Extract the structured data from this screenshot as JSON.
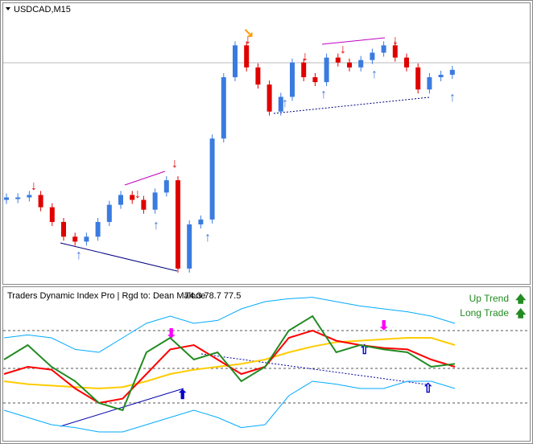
{
  "price_panel": {
    "symbol": "USDCAD,M15",
    "ylim": [
      0,
      100
    ],
    "open": 30,
    "closes": [
      31,
      31,
      32,
      27,
      21,
      15,
      13,
      15,
      21,
      28,
      32,
      30,
      26,
      33,
      38,
      2,
      20,
      22,
      55,
      80,
      93,
      84,
      77,
      66,
      72,
      86,
      80,
      78,
      88,
      86,
      84,
      87,
      90,
      93,
      88,
      84,
      75,
      80,
      81,
      83
    ]
  },
  "indicator_panel": {
    "title": "Traders Dynamic Index Pro | Rgd to: Dean Malone",
    "readout": "74.3 78.7 77.5",
    "signals": [
      "Up Trend",
      "Long Trade"
    ],
    "ylim": [
      0,
      100
    ],
    "series": [
      {
        "color": "#00aaff",
        "values": [
          70,
          72,
          70,
          62,
          60,
          70,
          80,
          85,
          80,
          82,
          90,
          95,
          97,
          98,
          95,
          92,
          90,
          88,
          85,
          80
        ]
      },
      {
        "color": "#00aaff",
        "values": [
          20,
          15,
          10,
          8,
          5,
          5,
          10,
          15,
          20,
          15,
          8,
          10,
          30,
          40,
          38,
          35,
          35,
          40,
          40,
          35
        ]
      },
      {
        "color": "#ffcc00",
        "values": [
          40,
          38,
          37,
          36,
          35,
          36,
          40,
          45,
          48,
          50,
          52,
          55,
          60,
          64,
          67,
          68,
          69,
          70,
          70,
          65
        ]
      },
      {
        "color": "#ff0000",
        "values": [
          45,
          50,
          48,
          35,
          25,
          28,
          45,
          62,
          65,
          55,
          45,
          50,
          70,
          75,
          68,
          65,
          63,
          62,
          55,
          50
        ]
      },
      {
        "color": "#228b22",
        "values": [
          55,
          65,
          50,
          40,
          25,
          20,
          60,
          70,
          55,
          60,
          40,
          50,
          75,
          85,
          60,
          65,
          62,
          60,
          50,
          52
        ]
      }
    ]
  }
}
